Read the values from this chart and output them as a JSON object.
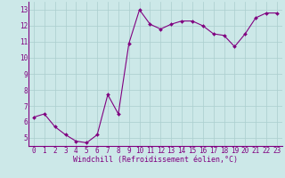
{
  "x": [
    0,
    1,
    2,
    3,
    4,
    5,
    6,
    7,
    8,
    9,
    10,
    11,
    12,
    13,
    14,
    15,
    16,
    17,
    18,
    19,
    20,
    21,
    22,
    23
  ],
  "y": [
    6.3,
    6.5,
    5.7,
    5.2,
    4.8,
    4.7,
    5.2,
    7.7,
    6.5,
    10.9,
    13.0,
    12.1,
    11.8,
    12.1,
    12.3,
    12.3,
    12.0,
    11.5,
    11.4,
    10.7,
    11.5,
    12.5,
    12.8,
    12.8
  ],
  "line_color": "#800080",
  "marker": "D",
  "marker_size": 2.0,
  "bg_color": "#cce8e8",
  "grid_color": "#aacece",
  "xlabel": "Windchill (Refroidissement éolien,°C)",
  "xlabel_color": "#800080",
  "tick_color": "#800080",
  "spine_color": "#800080",
  "ylim": [
    5,
    13
  ],
  "xlim": [
    0,
    23
  ],
  "yticks": [
    5,
    6,
    7,
    8,
    9,
    10,
    11,
    12,
    13
  ],
  "xticks": [
    0,
    1,
    2,
    3,
    4,
    5,
    6,
    7,
    8,
    9,
    10,
    11,
    12,
    13,
    14,
    15,
    16,
    17,
    18,
    19,
    20,
    21,
    22,
    23
  ],
  "axis_fontsize": 5.5,
  "label_fontsize": 6.0,
  "linewidth": 0.8
}
